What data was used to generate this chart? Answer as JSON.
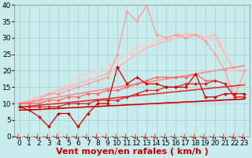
{
  "title": "",
  "xlabel": "Vent moyen/en rafales ( km/h )",
  "background_color": "#c8ecec",
  "grid_color": "#aacccc",
  "xlim": [
    -0.5,
    23.5
  ],
  "ylim": [
    0,
    40
  ],
  "yticks": [
    0,
    5,
    10,
    15,
    20,
    25,
    30,
    35,
    40
  ],
  "xticks": [
    0,
    1,
    2,
    3,
    4,
    5,
    6,
    7,
    8,
    9,
    10,
    11,
    12,
    13,
    14,
    15,
    16,
    17,
    18,
    19,
    20,
    21,
    22,
    23
  ],
  "series": [
    {
      "x": [
        0,
        1,
        2,
        3,
        4,
        5,
        6,
        7,
        8,
        9,
        10,
        11,
        12,
        13,
        14,
        15,
        16,
        17,
        18,
        19,
        20,
        21,
        22,
        23
      ],
      "y": [
        9,
        8,
        6,
        3,
        7,
        7,
        3,
        7,
        10,
        10,
        21,
        16,
        18,
        16,
        16,
        15,
        15,
        15,
        19,
        12,
        12,
        13,
        13,
        13
      ],
      "color": "#cc0000",
      "lw": 0.9,
      "marker": "D",
      "ms": 2.0,
      "zorder": 10
    },
    {
      "x": [
        0,
        1,
        2,
        3,
        4,
        5,
        6,
        7,
        8,
        9,
        10,
        11,
        12,
        13,
        14,
        15,
        16,
        17,
        18,
        19,
        20,
        21,
        22,
        23
      ],
      "y": [
        8.0,
        8.1,
        8.2,
        8.4,
        8.5,
        8.7,
        8.8,
        9.0,
        9.1,
        9.3,
        9.4,
        9.6,
        9.7,
        9.9,
        10.0,
        10.2,
        10.3,
        10.5,
        10.6,
        10.8,
        10.9,
        11.1,
        11.2,
        11.4
      ],
      "color": "#cc0000",
      "lw": 1.2,
      "marker": null,
      "ms": 0,
      "zorder": 9
    },
    {
      "x": [
        0,
        1,
        2,
        3,
        4,
        5,
        6,
        7,
        8,
        9,
        10,
        11,
        12,
        13,
        14,
        15,
        16,
        17,
        18,
        19,
        20,
        21,
        22,
        23
      ],
      "y": [
        9,
        9,
        9,
        9,
        9,
        10,
        10,
        10,
        11,
        11,
        11,
        12,
        13,
        14,
        14,
        15,
        15,
        16,
        16,
        16,
        17,
        16,
        12,
        12
      ],
      "color": "#dd2222",
      "lw": 0.9,
      "marker": "D",
      "ms": 2.0,
      "zorder": 8
    },
    {
      "x": [
        0,
        1,
        2,
        3,
        4,
        5,
        6,
        7,
        8,
        9,
        10,
        11,
        12,
        13,
        14,
        15,
        16,
        17,
        18,
        19,
        20,
        21,
        22,
        23
      ],
      "y": [
        9.0,
        9.2,
        9.5,
        9.8,
        10.0,
        10.3,
        10.6,
        10.9,
        11.2,
        11.5,
        11.8,
        12.1,
        12.4,
        12.7,
        13.0,
        13.3,
        13.6,
        13.9,
        14.2,
        14.5,
        14.8,
        15.1,
        15.4,
        15.7
      ],
      "color": "#dd3333",
      "lw": 1.2,
      "marker": null,
      "ms": 0,
      "zorder": 7
    },
    {
      "x": [
        0,
        1,
        2,
        3,
        4,
        5,
        6,
        7,
        8,
        9,
        10,
        11,
        12,
        13,
        14,
        15,
        16,
        17,
        18,
        19,
        20,
        21,
        22,
        23
      ],
      "y": [
        10,
        10,
        10,
        11,
        11,
        12,
        12,
        13,
        13,
        14,
        14,
        15,
        16,
        17,
        18,
        18,
        18,
        18,
        19,
        17,
        17,
        16,
        12,
        12
      ],
      "color": "#ff6666",
      "lw": 0.9,
      "marker": "D",
      "ms": 2.0,
      "zorder": 6
    },
    {
      "x": [
        0,
        1,
        2,
        3,
        4,
        5,
        6,
        7,
        8,
        9,
        10,
        11,
        12,
        13,
        14,
        15,
        16,
        17,
        18,
        19,
        20,
        21,
        22,
        23
      ],
      "y": [
        10,
        10.5,
        11,
        11.5,
        12,
        12.5,
        13,
        13.5,
        14,
        14.5,
        15,
        15.5,
        16,
        16.5,
        17,
        17.5,
        18,
        18.5,
        19,
        19.5,
        20,
        20.5,
        21,
        21.5
      ],
      "color": "#ff8888",
      "lw": 1.2,
      "marker": null,
      "ms": 0,
      "zorder": 5
    },
    {
      "x": [
        0,
        1,
        2,
        3,
        4,
        5,
        6,
        7,
        8,
        9,
        10,
        11,
        12,
        13,
        14,
        15,
        16,
        17,
        18,
        19,
        20,
        21,
        22,
        23
      ],
      "y": [
        10,
        10,
        11,
        13,
        13,
        14,
        15,
        16,
        17,
        18,
        25,
        38,
        35,
        40,
        31,
        30,
        31,
        30,
        31,
        29,
        25,
        20,
        12,
        20
      ],
      "color": "#ff9999",
      "lw": 0.9,
      "marker": "D",
      "ms": 2.0,
      "zorder": 4
    },
    {
      "x": [
        0,
        1,
        2,
        3,
        4,
        5,
        6,
        7,
        8,
        9,
        10,
        11,
        12,
        13,
        14,
        15,
        16,
        17,
        18,
        19,
        20,
        21,
        22,
        23
      ],
      "y": [
        10,
        11,
        12,
        13,
        14,
        15,
        16,
        17,
        18,
        19,
        21,
        23,
        25,
        27,
        28,
        29,
        30,
        31,
        31,
        30,
        31,
        25,
        20,
        20
      ],
      "color": "#ffbbbb",
      "lw": 1.5,
      "marker": null,
      "ms": 0,
      "zorder": 3
    },
    {
      "x": [
        0,
        1,
        2,
        3,
        4,
        5,
        6,
        7,
        8,
        9,
        10,
        11,
        12,
        13,
        14,
        15,
        16,
        17,
        18,
        19,
        20,
        21,
        22,
        23
      ],
      "y": [
        10,
        10,
        12,
        13,
        14,
        16,
        18,
        19,
        20,
        21,
        23,
        25,
        27,
        28,
        29,
        30,
        31,
        31,
        31,
        30,
        29,
        25,
        20,
        20
      ],
      "color": "#ffcccc",
      "lw": 1.2,
      "marker": "D",
      "ms": 2.0,
      "zorder": 2
    }
  ],
  "arrow_color": "#cc0000",
  "xlabel_color": "#cc0000",
  "xlabel_fontsize": 8,
  "tick_fontsize": 6.5
}
